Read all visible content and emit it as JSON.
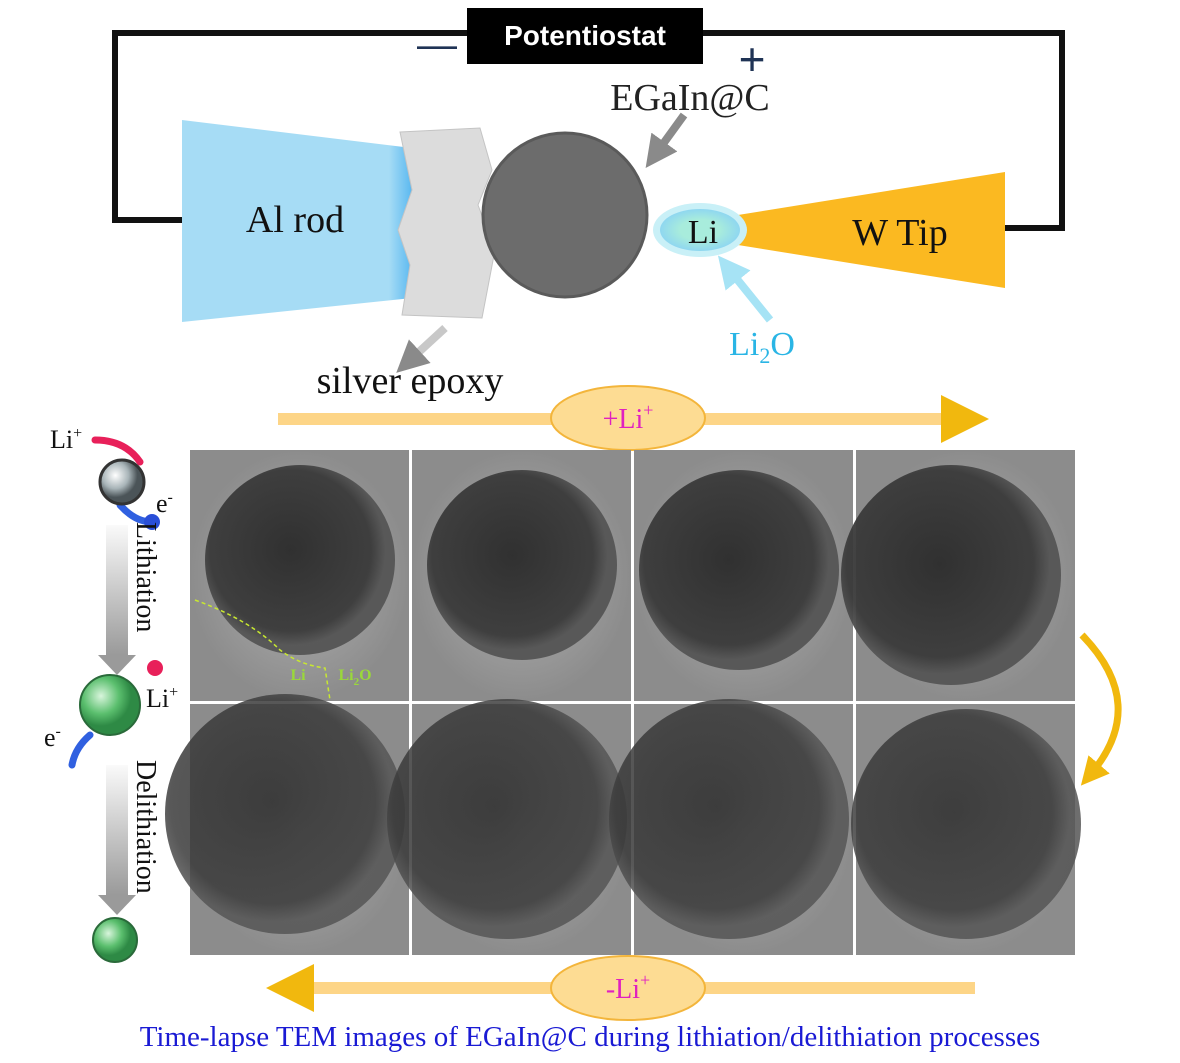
{
  "potentiostat": {
    "label": "Potentiostat",
    "negative": "—",
    "positive": "+"
  },
  "schematic": {
    "sphere": "EGaIn@C",
    "rod": "Al rod",
    "tip_layer": "Li",
    "tip": "W Tip",
    "oxide": {
      "base": "Li",
      "sub": "2",
      "tail": "O"
    },
    "epoxy": "silver epoxy"
  },
  "process": {
    "lithiation_arrow": {
      "base": "+Li",
      "sup": "+"
    },
    "delithiation_arrow": {
      "base": "-Li",
      "sup": "+"
    }
  },
  "side": {
    "ion_top": {
      "base": "Li",
      "sup": "+"
    },
    "electron_top": {
      "base": "e",
      "sup": "-"
    },
    "lithiation": "Lithiation",
    "ion_mid": {
      "base": "Li",
      "sup": "+"
    },
    "electron_mid": {
      "base": "e",
      "sup": "-"
    },
    "delithiation": "Delithiation"
  },
  "tem": {
    "labels": {
      "li": "Li",
      "oxide": {
        "base": "Li",
        "sub": "2",
        "tail": "O"
      }
    }
  },
  "caption": "Time-lapse TEM images of EGaIn@C during lithiation/delithiation processes"
}
